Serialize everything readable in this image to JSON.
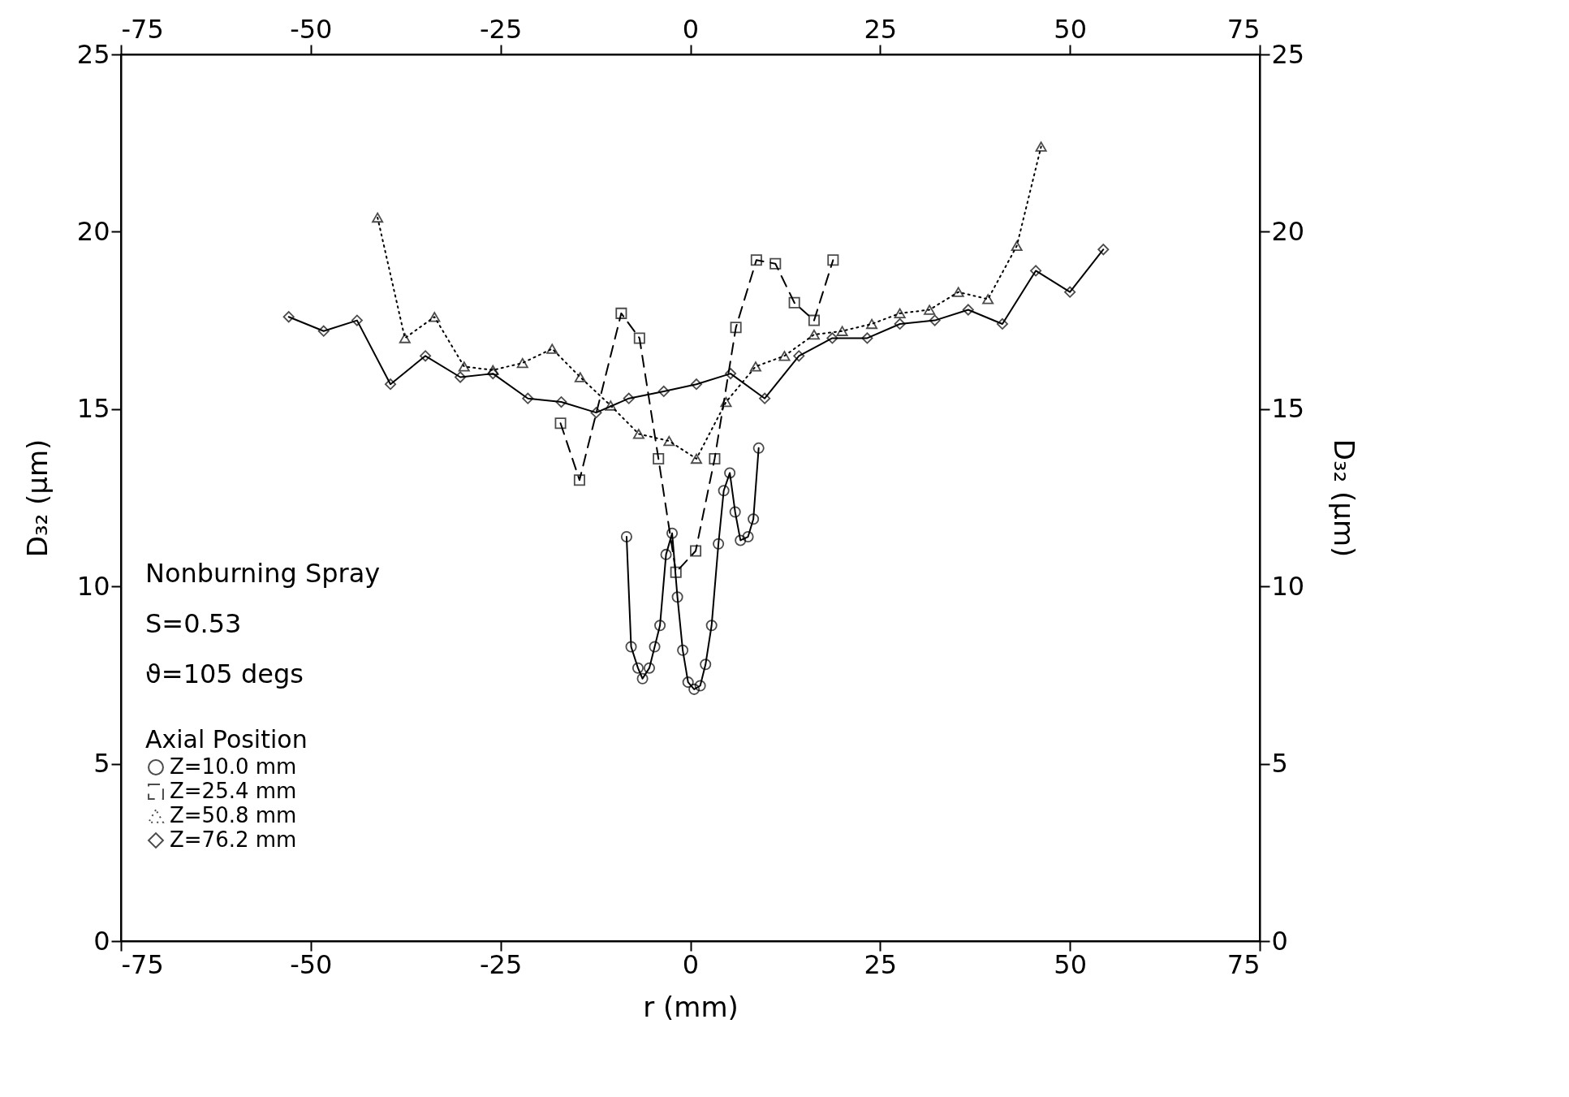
{
  "chart_data": {
    "type": "line",
    "xlabel": "r (mm)",
    "ylabel": "D₃₂ (μm)",
    "y2label": "D₃₂ (μm)",
    "legend_title": "Axial Position",
    "legend": "bottom left",
    "annotations": [
      "Nonburning Spray",
      "S=0.53",
      "ϑ=105 degs"
    ],
    "xlim": [
      -75,
      75
    ],
    "xticks": [
      -75,
      -50,
      -25,
      0,
      25,
      50,
      75
    ],
    "ylim": [
      0,
      25
    ],
    "yticks": [
      0,
      5,
      10,
      15,
      20,
      25
    ],
    "x2lim": [
      -75,
      75
    ],
    "x2ticks": [
      -75,
      -50,
      -25,
      0,
      25,
      50,
      75
    ],
    "y2lim": [
      0,
      25
    ],
    "y2ticks": [
      0,
      5,
      10,
      15,
      20,
      25
    ],
    "series": [
      {
        "name": "Z=10.0 mm",
        "color": "#000000",
        "marker": "circle",
        "line_style": "solid",
        "x": [
          -8.4,
          -7.8,
          -6.9,
          -6.3,
          -5.4,
          -4.7,
          -4.0,
          -3.2,
          -2.4,
          -1.7,
          -1.0,
          -0.3,
          0.5,
          1.3,
          2.0,
          2.8,
          3.7,
          4.4,
          5.2,
          5.9,
          6.6,
          7.6,
          8.3,
          9.0
        ],
        "values": [
          11.4,
          8.3,
          7.7,
          7.4,
          7.7,
          8.3,
          8.9,
          10.9,
          11.5,
          9.7,
          8.2,
          7.3,
          7.1,
          7.2,
          7.8,
          8.9,
          11.2,
          12.7,
          13.2,
          12.1,
          11.3,
          11.4,
          11.9,
          13.9
        ]
      },
      {
        "name": "Z=25.4 mm",
        "color": "#000000",
        "marker": "square",
        "line_style": "dashed",
        "x": [
          -17.1,
          -14.6,
          -9.1,
          -6.7,
          -4.2,
          -1.9,
          0.7,
          3.2,
          6.0,
          8.7,
          11.2,
          13.7,
          16.3,
          18.8
        ],
        "values": [
          14.6,
          13.0,
          17.7,
          17.0,
          13.6,
          10.4,
          11.0,
          13.6,
          17.3,
          19.2,
          19.1,
          18.0,
          17.5,
          19.2
        ]
      },
      {
        "name": "Z=50.8 mm",
        "color": "#000000",
        "marker": "triangle",
        "line_style": "dotted",
        "x": [
          -41.2,
          -37.6,
          -33.7,
          -29.8,
          -26.0,
          -22.1,
          -18.2,
          -14.5,
          -10.5,
          -6.8,
          -2.8,
          0.8,
          4.7,
          8.6,
          12.4,
          16.3,
          20.0,
          23.9,
          27.6,
          31.5,
          35.3,
          39.2,
          43.0,
          46.2
        ],
        "values": [
          20.4,
          17.0,
          17.6,
          16.2,
          16.1,
          16.3,
          16.7,
          15.9,
          15.1,
          14.3,
          14.1,
          13.6,
          15.2,
          16.2,
          16.5,
          17.1,
          17.2,
          17.4,
          17.7,
          17.8,
          18.3,
          18.1,
          19.6,
          22.4
        ]
      },
      {
        "name": "Z=76.2 mm",
        "color": "#000000",
        "marker": "diamond",
        "line_style": "solid",
        "x": [
          -52.9,
          -48.3,
          -43.9,
          -39.5,
          -34.9,
          -30.3,
          -26.0,
          -21.4,
          -17.0,
          -12.4,
          -8.1,
          -3.5,
          0.8,
          5.3,
          9.8,
          14.3,
          18.7,
          23.3,
          27.6,
          32.2,
          36.6,
          41.1,
          45.5,
          50.0,
          54.4
        ],
        "values": [
          17.6,
          17.2,
          17.5,
          15.7,
          16.5,
          15.9,
          16.0,
          15.3,
          15.2,
          14.9,
          15.3,
          15.5,
          15.7,
          16.0,
          15.3,
          16.5,
          17.0,
          17.0,
          17.4,
          17.5,
          17.8,
          17.4,
          18.9,
          18.3,
          19.5
        ]
      }
    ]
  }
}
